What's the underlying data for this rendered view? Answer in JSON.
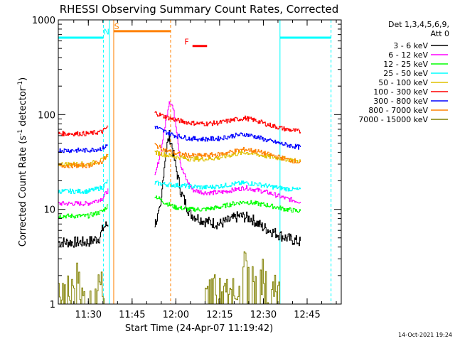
{
  "chart_data": {
    "type": "line",
    "title": "RHESSI Observing Summary Count Rates, Corrected",
    "xlabel": "Start Time (24-Apr-07 11:19:42)",
    "ylabel_main": "Corrected Count Rate (s",
    "ylabel_sup1": "-1",
    "ylabel_mid": " detector",
    "ylabel_sup2": "-1",
    "ylabel_end": ")",
    "xlim": [
      0,
      97
    ],
    "ylim": [
      1,
      1000
    ],
    "yscale": "log",
    "x_ticks": [
      {
        "v": 10.3,
        "label": "11:30"
      },
      {
        "v": 25.3,
        "label": "11:45"
      },
      {
        "v": 40.3,
        "label": "12:00"
      },
      {
        "v": 55.3,
        "label": "12:15"
      },
      {
        "v": 70.3,
        "label": "12:30"
      },
      {
        "v": 85.3,
        "label": "12:45"
      }
    ],
    "y_ticks": [
      {
        "v": 1,
        "label": "1"
      },
      {
        "v": 10,
        "label": "10"
      },
      {
        "v": 100,
        "label": "100"
      },
      {
        "v": 1000,
        "label": "1000"
      }
    ],
    "legend": {
      "position": "top-right",
      "header1": "Det 1,3,4,5,6,9,",
      "header2": "Att 0",
      "entries": [
        {
          "label": "3 - 6 keV",
          "color": "#000000"
        },
        {
          "label": "6 - 12 keV",
          "color": "#ff00ff"
        },
        {
          "label": "12 - 25 keV",
          "color": "#00ff00"
        },
        {
          "label": "25 - 50 keV",
          "color": "#00ffff"
        },
        {
          "label": "50 - 100 keV",
          "color": "#e0c000"
        },
        {
          "label": "100 - 300 keV",
          "color": "#ff0000"
        },
        {
          "label": "300 - 800 keV",
          "color": "#0000ff"
        },
        {
          "label": "800 - 7000 keV",
          "color": "#ff8000"
        },
        {
          "label": "7000 - 15000 keV",
          "color": "#808000"
        }
      ]
    },
    "series": [
      {
        "name": "3 - 6 keV",
        "color": "#000000",
        "segments": [
          {
            "x": [
              0,
              10,
              14,
              15,
              15.5,
              17
            ],
            "y": [
              4.5,
              4.5,
              5,
              6,
              6.5,
              7
            ]
          },
          {
            "x": [
              33,
              35,
              36,
              37,
              38,
              39,
              40,
              42,
              45,
              50,
              55,
              58,
              62,
              66,
              70,
              75,
              78,
              83
            ],
            "y": [
              7,
              10,
              25,
              45,
              60,
              45,
              30,
              15,
              9,
              7.5,
              7,
              7.5,
              8.5,
              8,
              6.5,
              5.5,
              5,
              4.5
            ]
          }
        ]
      },
      {
        "name": "6 - 12 keV",
        "color": "#ff00ff",
        "segments": [
          {
            "x": [
              0,
              10,
              15,
              17
            ],
            "y": [
              11.5,
              11.5,
              13,
              16
            ]
          },
          {
            "x": [
              33,
              35,
              37,
              38,
              39,
              40,
              41,
              42,
              44,
              46,
              50,
              55,
              60,
              64,
              68,
              72,
              78,
              83
            ],
            "y": [
              22,
              40,
              95,
              140,
              125,
              90,
              50,
              28,
              20,
              16,
              15,
              15,
              16,
              17,
              16,
              15,
              13,
              12
            ]
          }
        ]
      },
      {
        "name": "12 - 25 keV",
        "color": "#00ff00",
        "segments": [
          {
            "x": [
              0,
              10,
              15,
              17
            ],
            "y": [
              8.5,
              8.5,
              9.5,
              11
            ]
          },
          {
            "x": [
              33,
              36,
              40,
              45,
              50,
              55,
              60,
              64,
              68,
              72,
              78,
              83
            ],
            "y": [
              14,
              12,
              10.5,
              10,
              10,
              10.5,
              11.5,
              12,
              11.5,
              11,
              10,
              9.5
            ]
          }
        ]
      },
      {
        "name": "25 - 50 keV",
        "color": "#00ffff",
        "segments": [
          {
            "x": [
              0,
              10,
              15,
              17
            ],
            "y": [
              15.5,
              15.5,
              17,
              20
            ]
          },
          {
            "x": [
              33,
              36,
              40,
              45,
              50,
              55,
              60,
              64,
              68,
              72,
              78,
              83
            ],
            "y": [
              19,
              18.5,
              18,
              17.5,
              17,
              17.5,
              18.5,
              19,
              18.5,
              17.5,
              16.5,
              16
            ]
          }
        ]
      },
      {
        "name": "50 - 100 keV",
        "color": "#e0c000",
        "segments": [
          {
            "x": [
              0,
              10,
              15,
              17
            ],
            "y": [
              30,
              30,
              33,
              38
            ]
          },
          {
            "x": [
              33,
              36,
              40,
              45,
              50,
              55,
              60,
              64,
              68,
              72,
              78,
              83
            ],
            "y": [
              40,
              38,
              36,
              34,
              34,
              35,
              38,
              40,
              38,
              36,
              34,
              32
            ]
          }
        ]
      },
      {
        "name": "100 - 300 keV",
        "color": "#ff0000",
        "segments": [
          {
            "x": [
              0,
              10,
              15,
              17
            ],
            "y": [
              63,
              63,
              66,
              75
            ]
          },
          {
            "x": [
              33,
              36,
              40,
              45,
              50,
              55,
              60,
              64,
              68,
              72,
              78,
              83
            ],
            "y": [
              105,
              96,
              88,
              82,
              80,
              82,
              88,
              92,
              86,
              78,
              70,
              66
            ]
          }
        ]
      },
      {
        "name": "300 - 800 keV",
        "color": "#0000ff",
        "segments": [
          {
            "x": [
              0,
              10,
              15,
              17
            ],
            "y": [
              42,
              42,
              44,
              48
            ]
          },
          {
            "x": [
              33,
              36,
              40,
              45,
              50,
              55,
              60,
              64,
              68,
              72,
              78,
              83
            ],
            "y": [
              75,
              67,
              60,
              56,
              55,
              56,
              60,
              62,
              58,
              53,
              48,
              45
            ]
          }
        ]
      },
      {
        "name": "800 - 7000 keV",
        "color": "#ff8000",
        "segments": [
          {
            "x": [
              0,
              10,
              15,
              17
            ],
            "y": [
              29,
              29,
              32,
              38
            ]
          },
          {
            "x": [
              33,
              36,
              40,
              45,
              50,
              55,
              60,
              64,
              68,
              72,
              78,
              83
            ],
            "y": [
              48,
              43,
              39,
              37,
              37,
              38,
              41,
              43,
              41,
              38,
              34,
              31
            ]
          }
        ]
      },
      {
        "name": "7000 - 15000 keV",
        "color": "#808000",
        "segments": [
          {
            "x": [
              0,
              2,
              4,
              6,
              8,
              10,
              12,
              14,
              16
            ],
            "y": [
              1.2,
              1.8,
              1.1,
              2.0,
              1.3,
              1.9,
              1.1,
              1.7,
              1.2
            ]
          },
          {
            "x": [
              50,
              53,
              56,
              59,
              61,
              63,
              64,
              66,
              68,
              70,
              72,
              74,
              76
            ],
            "y": [
              1.3,
              1.9,
              1.2,
              2.0,
              1.4,
              2.2,
              3.0,
              2.1,
              1.4,
              2.0,
              1.2,
              1.8,
              1.1
            ]
          }
        ]
      }
    ],
    "vlines": [
      {
        "x": 15.5,
        "color": "#00ffff",
        "dash": true
      },
      {
        "x": 17.5,
        "color": "#00ffff",
        "dash": false
      },
      {
        "x": 19,
        "color": "#ff8000",
        "dash": false
      },
      {
        "x": 38.5,
        "color": "#ff8000",
        "dash": true
      },
      {
        "x": 76,
        "color": "#00ffff",
        "dash": false
      },
      {
        "x": 93.5,
        "color": "#00ffff",
        "dash": true
      }
    ],
    "night_bars": [
      {
        "x1": 0,
        "x2": 15.5,
        "y": 650,
        "color": "#00ffff"
      },
      {
        "x1": 76,
        "x2": 93.5,
        "y": 650,
        "color": "#00ffff"
      }
    ],
    "saa_bar": {
      "x1": 19,
      "x2": 38.5,
      "y": 760,
      "color": "#ff8000"
    },
    "flare_bar": {
      "x1": 46,
      "x2": 51,
      "y": 530,
      "color": "#ff0000"
    },
    "annotations": [
      {
        "text": "N",
        "x": 16.5,
        "y": 700,
        "color": "#00ffff"
      },
      {
        "text": "S",
        "x": 20,
        "y": 800,
        "color": "#ff8000"
      },
      {
        "text": "F",
        "x": 44,
        "y": 550,
        "color": "#ff0000"
      }
    ],
    "timestamp": "14-Oct-2021 19:24"
  }
}
